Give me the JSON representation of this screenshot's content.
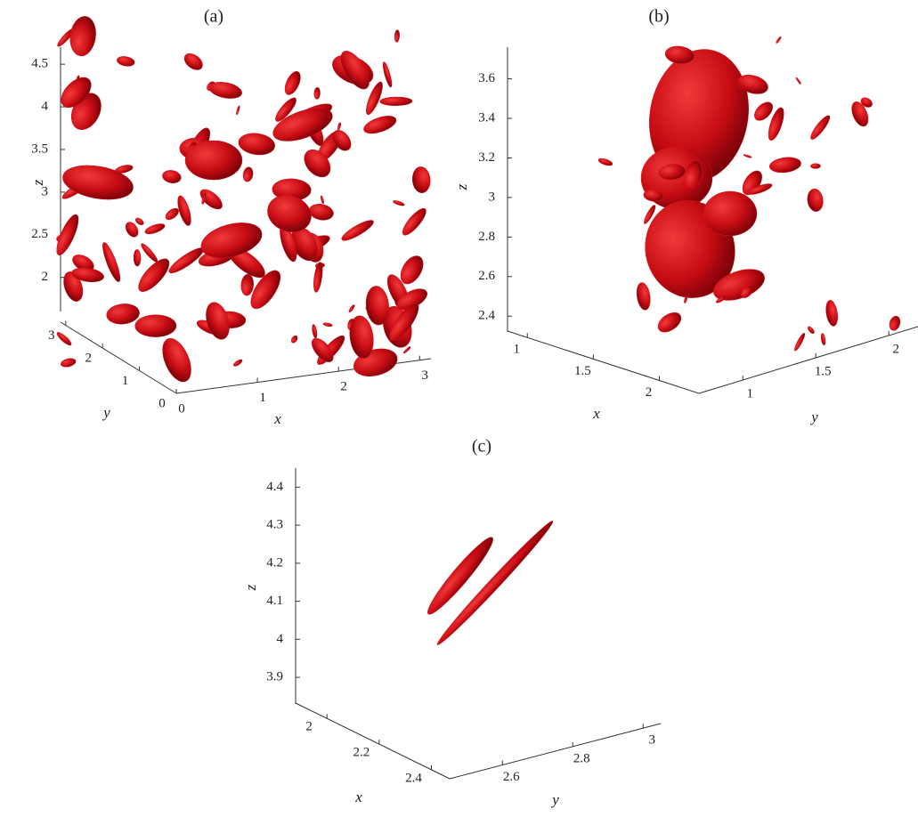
{
  "chart_data": [
    {
      "type": "surface3d",
      "title": "(a)",
      "xlabel": "x",
      "ylabel": "y",
      "zlabel": "z",
      "xlim": [
        0,
        3.14
      ],
      "ylim": [
        0,
        3.14
      ],
      "zlim": [
        1.6,
        4.7
      ],
      "xticks": [
        0,
        1,
        2,
        3
      ],
      "yticks": [
        0,
        1,
        2,
        3
      ],
      "zticks": [
        2,
        2.5,
        3,
        3.5,
        4,
        4.5
      ],
      "color": "#d0101a"
    },
    {
      "type": "surface3d",
      "title": "(b)",
      "xlabel": "x",
      "ylabel": "y",
      "zlabel": "z",
      "xlim": [
        0.85,
        2.3
      ],
      "ylim": [
        0.7,
        2.2
      ],
      "zlim": [
        2.32,
        3.76
      ],
      "xticks": [
        1,
        1.5,
        2
      ],
      "yticks": [
        1,
        1.5,
        2
      ],
      "zticks": [
        2.4,
        2.6,
        2.8,
        3,
        3.2,
        3.4,
        3.6
      ],
      "color": "#e0141c"
    },
    {
      "type": "surface3d",
      "title": "(c)",
      "xlabel": "x",
      "ylabel": "y",
      "zlabel": "z",
      "xlim": [
        1.88,
        2.47
      ],
      "ylim": [
        2.45,
        3.05
      ],
      "zlim": [
        3.83,
        4.45
      ],
      "xticks": [
        2,
        2.2,
        2.4
      ],
      "yticks": [
        2.6,
        2.8,
        3
      ],
      "zticks": [
        3.9,
        4,
        4.1,
        4.2,
        4.3,
        4.4
      ],
      "color": "#d0101a"
    }
  ]
}
